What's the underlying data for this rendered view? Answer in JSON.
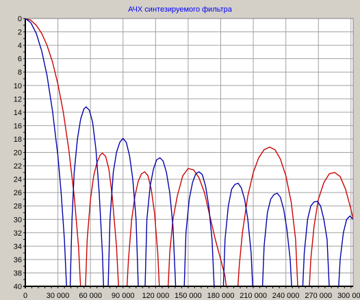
{
  "chart_data": {
    "type": "line",
    "title": "АЧХ синтезируемого фильтра",
    "xlabel": "",
    "ylabel": "",
    "xlim": [
      0,
      302000
    ],
    "ylim": [
      0,
      40
    ],
    "y_inverted": true,
    "grid": true,
    "x_ticks": [
      {
        "value": 0,
        "label": "0"
      },
      {
        "value": 30000,
        "label": "30 000"
      },
      {
        "value": 60000,
        "label": "60 000"
      },
      {
        "value": 90000,
        "label": "90 000"
      },
      {
        "value": 120000,
        "label": "120 000"
      },
      {
        "value": 150000,
        "label": "150 000"
      },
      {
        "value": 180000,
        "label": "180 000"
      },
      {
        "value": 210000,
        "label": "210 000"
      },
      {
        "value": 240000,
        "label": "240 000"
      },
      {
        "value": 270000,
        "label": "270 000"
      },
      {
        "value": 300000,
        "label": "300 000"
      }
    ],
    "y_ticks": [
      0,
      2,
      4,
      6,
      8,
      10,
      12,
      14,
      16,
      18,
      20,
      22,
      24,
      26,
      28,
      30,
      32,
      34,
      36,
      38,
      40
    ],
    "series": [
      {
        "color": "#0000aa",
        "points": [
          [
            0,
            0
          ],
          [
            5000,
            0.6
          ],
          [
            10000,
            2.2
          ],
          [
            15000,
            4.8
          ],
          [
            20000,
            8.5
          ],
          [
            25000,
            13.8
          ],
          [
            30000,
            20.5
          ],
          [
            33000,
            26
          ],
          [
            36000,
            33
          ],
          [
            38500,
            42
          ],
          [
            41000,
            42
          ],
          [
            43000,
            30
          ],
          [
            45000,
            23
          ],
          [
            48000,
            18
          ],
          [
            51000,
            15
          ],
          [
            54000,
            13.5
          ],
          [
            56000,
            13.2
          ],
          [
            59000,
            13.7
          ],
          [
            62000,
            15.5
          ],
          [
            65000,
            19.5
          ],
          [
            68000,
            26
          ],
          [
            71000,
            35
          ],
          [
            72500,
            42
          ],
          [
            76000,
            42
          ],
          [
            78000,
            30
          ],
          [
            81000,
            23
          ],
          [
            84000,
            20
          ],
          [
            87000,
            18.5
          ],
          [
            90000,
            17.9
          ],
          [
            93000,
            18.5
          ],
          [
            96000,
            20.5
          ],
          [
            99000,
            24
          ],
          [
            102000,
            30
          ],
          [
            104500,
            42
          ],
          [
            110000,
            42
          ],
          [
            112000,
            30
          ],
          [
            115000,
            25
          ],
          [
            118000,
            22.5
          ],
          [
            121000,
            21.1
          ],
          [
            124000,
            20.8
          ],
          [
            127000,
            21.3
          ],
          [
            130000,
            23
          ],
          [
            133000,
            26
          ],
          [
            136000,
            31
          ],
          [
            139000,
            42
          ],
          [
            146000,
            42
          ],
          [
            148000,
            32
          ],
          [
            151000,
            27
          ],
          [
            154000,
            24.5
          ],
          [
            157000,
            23.2
          ],
          [
            160000,
            22.9
          ],
          [
            163000,
            23.3
          ],
          [
            166000,
            25
          ],
          [
            169000,
            28
          ],
          [
            172000,
            33
          ],
          [
            174500,
            42
          ],
          [
            182000,
            42
          ],
          [
            184000,
            33
          ],
          [
            187000,
            28
          ],
          [
            190000,
            25.5
          ],
          [
            193000,
            24.8
          ],
          [
            196000,
            24.6
          ],
          [
            199000,
            25.3
          ],
          [
            202000,
            27
          ],
          [
            205000,
            30
          ],
          [
            208000,
            35
          ],
          [
            210000,
            42
          ],
          [
            218000,
            42
          ],
          [
            220000,
            34
          ],
          [
            223000,
            29
          ],
          [
            226000,
            27
          ],
          [
            229000,
            26.3
          ],
          [
            232000,
            26.1
          ],
          [
            235000,
            26.7
          ],
          [
            238000,
            28.5
          ],
          [
            241000,
            31.5
          ],
          [
            244000,
            36
          ],
          [
            246000,
            42
          ],
          [
            255000,
            42
          ],
          [
            257000,
            35
          ],
          [
            260000,
            30
          ],
          [
            263000,
            28
          ],
          [
            266000,
            27.4
          ],
          [
            269000,
            27.3
          ],
          [
            272000,
            28
          ],
          [
            275000,
            30
          ],
          [
            278000,
            33
          ],
          [
            280500,
            42
          ],
          [
            288000,
            42
          ],
          [
            290000,
            36
          ],
          [
            293000,
            32
          ],
          [
            296000,
            30
          ],
          [
            299000,
            29.5
          ],
          [
            302000,
            30
          ]
        ]
      },
      {
        "color": "#cc0000",
        "points": [
          [
            0,
            0
          ],
          [
            5000,
            0.25
          ],
          [
            10000,
            1
          ],
          [
            15000,
            2.2
          ],
          [
            20000,
            4
          ],
          [
            25000,
            6.5
          ],
          [
            30000,
            9.8
          ],
          [
            35000,
            14
          ],
          [
            40000,
            19.5
          ],
          [
            45000,
            26.5
          ],
          [
            49000,
            34
          ],
          [
            51500,
            42
          ],
          [
            55000,
            42
          ],
          [
            57000,
            33
          ],
          [
            60000,
            27
          ],
          [
            63000,
            23.5
          ],
          [
            66000,
            21.5
          ],
          [
            69000,
            20.4
          ],
          [
            71000,
            20.1
          ],
          [
            74000,
            20.6
          ],
          [
            77000,
            22.5
          ],
          [
            80000,
            26.5
          ],
          [
            84000,
            34
          ],
          [
            86500,
            42
          ],
          [
            93000,
            42
          ],
          [
            95000,
            36
          ],
          [
            98000,
            30
          ],
          [
            101000,
            26.5
          ],
          [
            104000,
            24.3
          ],
          [
            107000,
            23.2
          ],
          [
            110000,
            22.9
          ],
          [
            113000,
            23.5
          ],
          [
            116000,
            25.5
          ],
          [
            119000,
            29
          ],
          [
            122000,
            35
          ],
          [
            124000,
            42
          ],
          [
            131000,
            42
          ],
          [
            133000,
            35
          ],
          [
            136000,
            30
          ],
          [
            140000,
            26.5
          ],
          [
            145000,
            23.5
          ],
          [
            150000,
            22.4
          ],
          [
            155000,
            22.6
          ],
          [
            160000,
            23.8
          ],
          [
            165000,
            26
          ],
          [
            170000,
            29.5
          ],
          [
            175000,
            33
          ],
          [
            180000,
            36
          ],
          [
            184000,
            38.5
          ],
          [
            186500,
            42
          ],
          [
            195000,
            42
          ],
          [
            197000,
            37
          ],
          [
            200000,
            32
          ],
          [
            205000,
            26.5
          ],
          [
            210000,
            23
          ],
          [
            215000,
            20.8
          ],
          [
            220000,
            19.6
          ],
          [
            225000,
            19.2
          ],
          [
            230000,
            19.6
          ],
          [
            235000,
            21
          ],
          [
            240000,
            23.5
          ],
          [
            245000,
            27.5
          ],
          [
            249000,
            33
          ],
          [
            251500,
            42
          ],
          [
            261000,
            42
          ],
          [
            263000,
            36
          ],
          [
            266000,
            31
          ],
          [
            270000,
            27
          ],
          [
            275000,
            24.5
          ],
          [
            280000,
            23.2
          ],
          [
            285000,
            23
          ],
          [
            290000,
            23.6
          ],
          [
            295000,
            25.5
          ],
          [
            300000,
            28.5
          ],
          [
            302000,
            30
          ]
        ]
      }
    ],
    "colors": {
      "background": "#d4d0c8",
      "plot_background": "#ffffff",
      "grid": "#a0a0a0",
      "title": "#0000ff"
    }
  }
}
